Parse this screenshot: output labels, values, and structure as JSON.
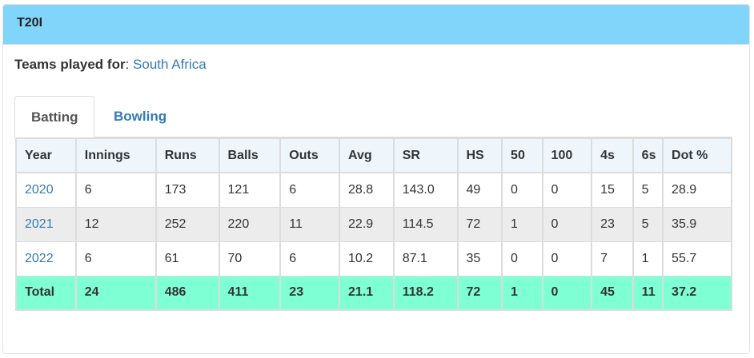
{
  "panel": {
    "title": "T20I"
  },
  "teams": {
    "label": "Teams played for",
    "separator": ":",
    "team": "South Africa"
  },
  "tabs": [
    {
      "label": "Batting",
      "active": true
    },
    {
      "label": "Bowling",
      "active": false
    }
  ],
  "table": {
    "headers": [
      "Year",
      "Innings",
      "Runs",
      "Balls",
      "Outs",
      "Avg",
      "SR",
      "HS",
      "50",
      "100",
      "4s",
      "6s",
      "Dot %"
    ],
    "rows": [
      [
        "2020",
        "6",
        "173",
        "121",
        "6",
        "28.8",
        "143.0",
        "49",
        "0",
        "0",
        "15",
        "5",
        "28.9"
      ],
      [
        "2021",
        "12",
        "252",
        "220",
        "11",
        "22.9",
        "114.5",
        "72",
        "1",
        "0",
        "23",
        "5",
        "35.9"
      ],
      [
        "2022",
        "6",
        "61",
        "70",
        "6",
        "10.2",
        "87.1",
        "35",
        "0",
        "0",
        "7",
        "1",
        "55.7"
      ]
    ],
    "total": [
      "Total",
      "24",
      "486",
      "411",
      "23",
      "21.1",
      "118.2",
      "72",
      "1",
      "0",
      "45",
      "11",
      "37.2"
    ]
  },
  "colors": {
    "heading_bg": "#81d4fa",
    "link": "#337ab7",
    "total_bg": "#7fffd4",
    "striped_bg": "#ececec",
    "header_bg": "#eef6fc"
  }
}
